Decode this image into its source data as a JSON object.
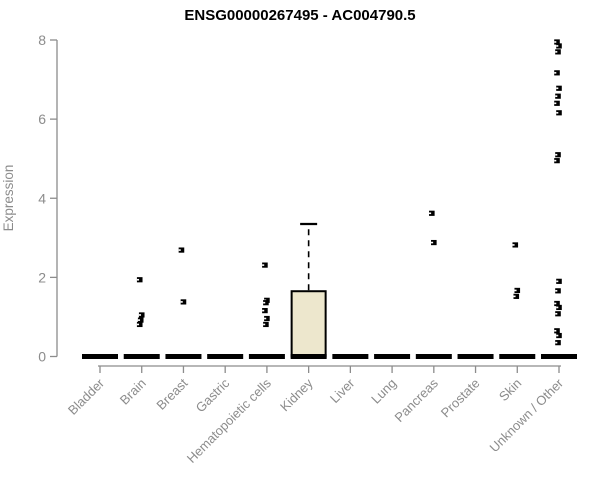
{
  "chart_data": {
    "type": "boxplot",
    "title": "ENSG00000267495 - AC004790.5",
    "ylabel": "Expression",
    "xlabel": "",
    "ylim": [
      0,
      8
    ],
    "yticks": [
      0,
      2,
      4,
      6,
      8
    ],
    "grid": false,
    "legend": "none",
    "colors": {
      "box_fill": "#EDE7CD",
      "box_stroke": "#000000",
      "median_bar": "#000000",
      "outlier": "#000000",
      "axis": "#8C8C8C",
      "title": "#000000"
    },
    "groups": [
      {
        "label": "Bladder",
        "box": {
          "min": 0,
          "q1": 0,
          "median": 0,
          "q3": 0,
          "max": 0
        },
        "outliers": []
      },
      {
        "label": "Brain",
        "box": {
          "min": 0,
          "q1": 0,
          "median": 0,
          "q3": 0,
          "max": 0
        },
        "outliers": [
          1.94,
          1.05,
          0.92,
          0.81
        ]
      },
      {
        "label": "Breast",
        "box": {
          "min": 0,
          "q1": 0,
          "median": 0,
          "q3": 0,
          "max": 0
        },
        "outliers": [
          2.69,
          1.38
        ]
      },
      {
        "label": "Gastric",
        "box": {
          "min": 0,
          "q1": 0,
          "median": 0,
          "q3": 0,
          "max": 0
        },
        "outliers": []
      },
      {
        "label": "Hematopoietic cells",
        "box": {
          "min": 0,
          "q1": 0,
          "median": 0,
          "q3": 0,
          "max": 0
        },
        "outliers": [
          2.31,
          1.42,
          1.36,
          1.16,
          0.96,
          0.81
        ]
      },
      {
        "label": "Kidney",
        "box": {
          "min": 0,
          "q1": 0,
          "median": 0,
          "q3": 1.65,
          "max": 3.35
        },
        "outliers": []
      },
      {
        "label": "Liver",
        "box": {
          "min": 0,
          "q1": 0,
          "median": 0,
          "q3": 0,
          "max": 0
        },
        "outliers": []
      },
      {
        "label": "Lung",
        "box": {
          "min": 0,
          "q1": 0,
          "median": 0,
          "q3": 0,
          "max": 0
        },
        "outliers": []
      },
      {
        "label": "Pancreas",
        "box": {
          "min": 0,
          "q1": 0,
          "median": 0,
          "q3": 0,
          "max": 0
        },
        "outliers": [
          3.62,
          2.88
        ]
      },
      {
        "label": "Prostate",
        "box": {
          "min": 0,
          "q1": 0,
          "median": 0,
          "q3": 0,
          "max": 0
        },
        "outliers": []
      },
      {
        "label": "Skin",
        "box": {
          "min": 0,
          "q1": 0,
          "median": 0,
          "q3": 0,
          "max": 0
        },
        "outliers": [
          2.82,
          1.67,
          1.52
        ]
      },
      {
        "label": "Unknown / Other",
        "box": {
          "min": 0,
          "q1": 0,
          "median": 0,
          "q3": 0,
          "max": 0
        },
        "outliers": [
          7.95,
          7.85,
          7.7,
          7.17,
          6.78,
          6.58,
          6.4,
          6.16,
          5.1,
          4.95,
          1.9,
          1.66,
          1.34,
          1.24,
          1.08,
          0.65,
          0.53,
          0.35
        ]
      }
    ]
  }
}
